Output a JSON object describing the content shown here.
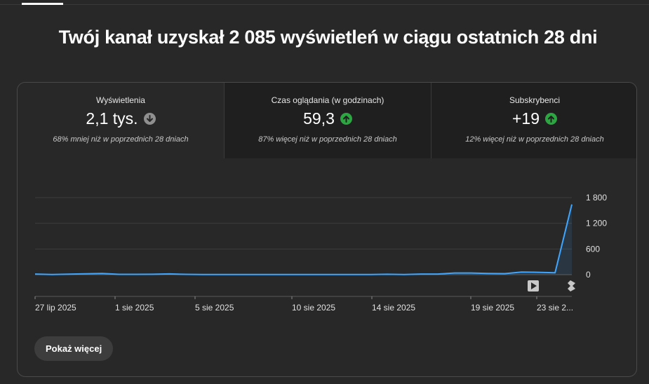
{
  "headline": "Twój kanał uzyskał 2 085 wyświetleń w ciągu ostatnich 28 dni",
  "metrics": [
    {
      "label": "Wyświetlenia",
      "value": "2,1 tys.",
      "trend": "down",
      "trend_icon": "arrow-down-circle-icon",
      "trend_color": "#909090",
      "compare": "68% mniej niż w poprzednich 28 dniach"
    },
    {
      "label": "Czas oglądania (w godzinach)",
      "value": "59,3",
      "trend": "up",
      "trend_icon": "arrow-up-circle-icon",
      "trend_color": "#2ba640",
      "compare": "87% więcej niż w poprzednich 28 dniach"
    },
    {
      "label": "Subskrybenci",
      "value": "+19",
      "trend": "up",
      "trend_icon": "arrow-up-circle-icon",
      "trend_color": "#2ba640",
      "compare": "12% więcej niż w poprzednich 28 dniach"
    }
  ],
  "chart_data": {
    "type": "line",
    "series": [
      {
        "values": [
          15,
          5,
          12,
          20,
          30,
          8,
          8,
          10,
          18,
          8,
          5,
          5,
          5,
          5,
          5,
          5,
          5,
          5,
          5,
          5,
          5,
          10,
          5,
          15,
          15,
          40,
          40,
          30,
          25,
          60,
          55,
          45,
          1640
        ]
      }
    ],
    "y_ticks": [
      "0",
      "600",
      "1 200",
      "1 800"
    ],
    "y_tick_values": [
      0,
      600,
      1200,
      1800
    ],
    "ylim": [
      0,
      1800
    ],
    "x_labels": [
      "27 lip 2025",
      "1 sie 2025",
      "5 sie 2025",
      "10 sie 2025",
      "14 sie 2025",
      "19 sie 2025",
      "23 sie 2..."
    ],
    "line_color": "#3ea6ff",
    "grid": true,
    "markers": [
      {
        "icon": "video-play-icon"
      },
      {
        "icon": "shorts-icon"
      }
    ]
  },
  "show_more_label": "Pokaż więcej"
}
